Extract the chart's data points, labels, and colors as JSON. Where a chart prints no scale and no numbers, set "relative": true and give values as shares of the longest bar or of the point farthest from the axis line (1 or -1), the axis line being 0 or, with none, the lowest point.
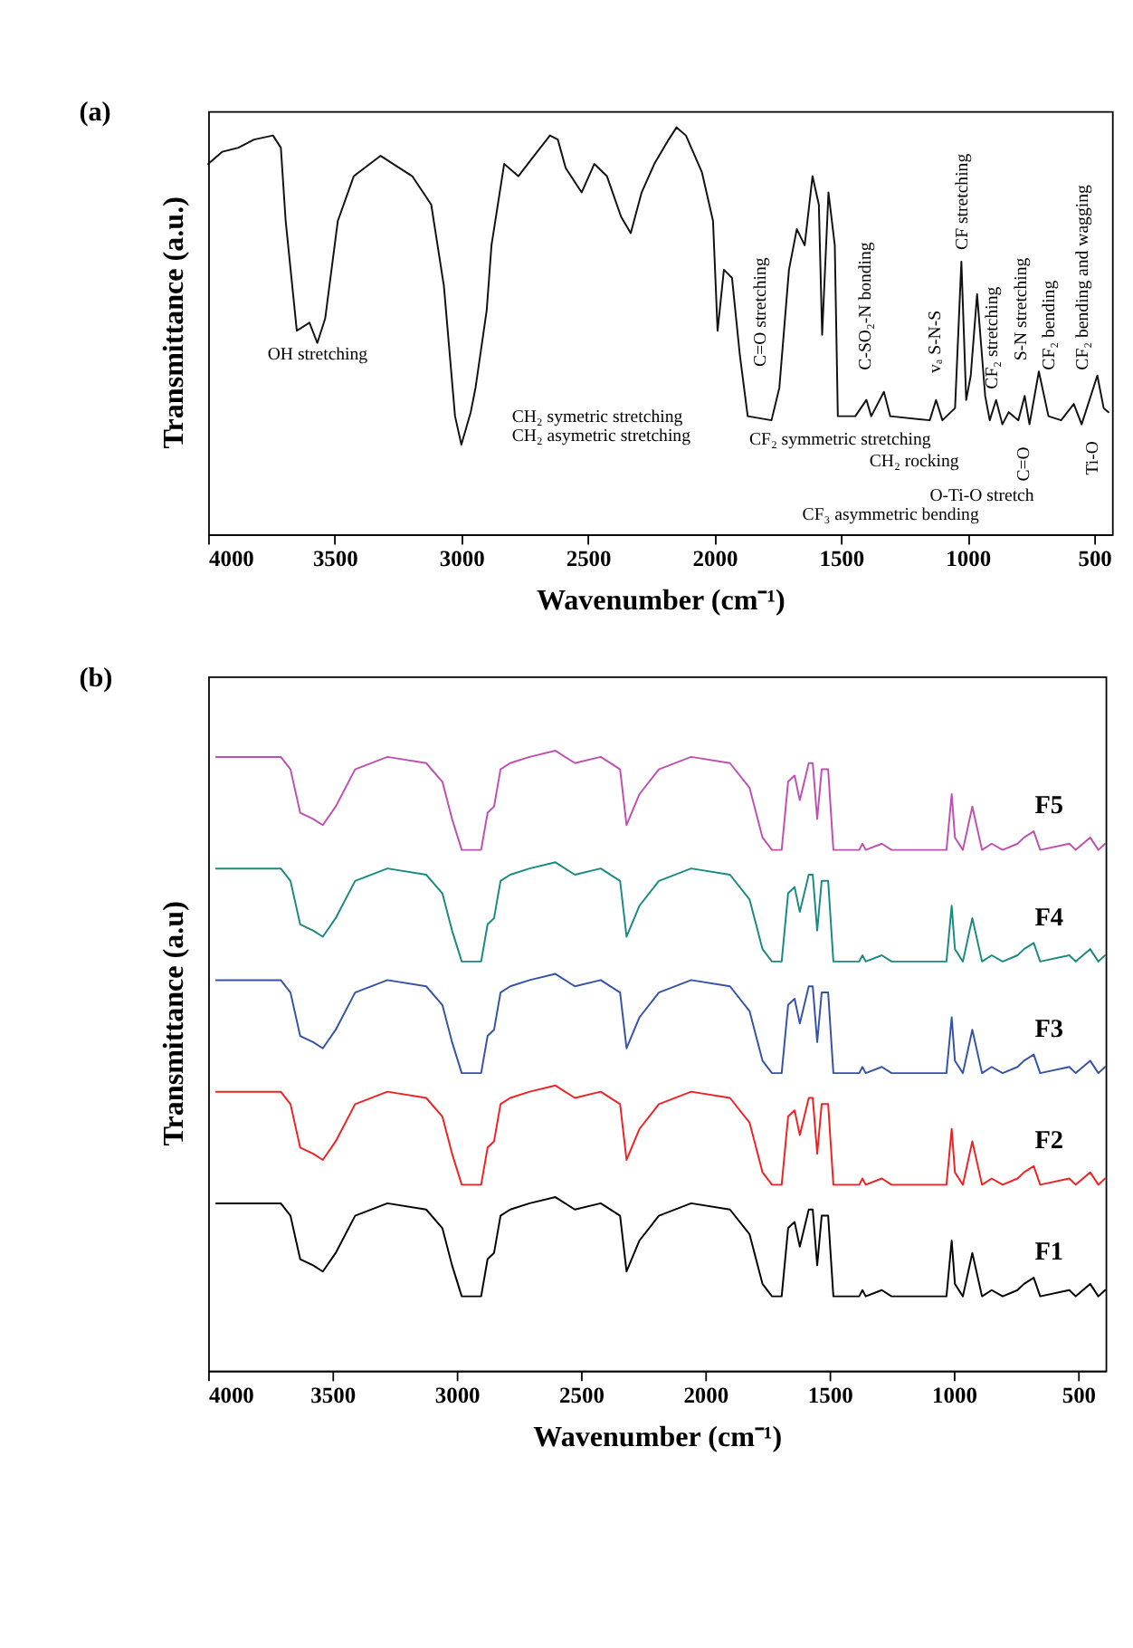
{
  "chart_data": [
    {
      "type": "line",
      "title": "(a)",
      "xlabel": "Wavenumber (cm⁻¹)",
      "ylabel": "Transmittance (a.u.)",
      "relative": true,
      "grid": false,
      "marker": "none",
      "line_style": "solid",
      "xlim": [
        4000,
        430
      ],
      "xticks": [
        4000,
        3500,
        3000,
        2500,
        2000,
        1500,
        1000,
        500
      ],
      "x": [
        4000,
        3944,
        3881,
        3819,
        3744,
        3713,
        3694,
        3650,
        3600,
        3569,
        3538,
        3488,
        3425,
        3319,
        3194,
        3119,
        3069,
        3025,
        3000,
        2963,
        2944,
        2900,
        2881,
        2831,
        2775,
        2713,
        2650,
        2619,
        2588,
        2525,
        2475,
        2425,
        2369,
        2331,
        2288,
        2238,
        2181,
        2150,
        2113,
        2050,
        2006,
        1988,
        1963,
        1931,
        1900,
        1869,
        1775,
        1744,
        1706,
        1675,
        1644,
        1613,
        1588,
        1575,
        1550,
        1525,
        1513,
        1444,
        1400,
        1381,
        1331,
        1306,
        1150,
        1125,
        1100,
        1050,
        1025,
        1006,
        988,
        963,
        931,
        913,
        888,
        863,
        838,
        800,
        775,
        756,
        719,
        681,
        631,
        581,
        550,
        488,
        463,
        444
      ],
      "series": [
        {
          "color": "#111111",
          "values": [
            0.91,
            0.94,
            0.95,
            0.97,
            0.98,
            0.95,
            0.77,
            0.5,
            0.52,
            0.47,
            0.53,
            0.77,
            0.88,
            0.93,
            0.88,
            0.81,
            0.61,
            0.29,
            0.22,
            0.3,
            0.36,
            0.55,
            0.71,
            0.91,
            0.88,
            0.93,
            0.98,
            0.97,
            0.9,
            0.84,
            0.91,
            0.88,
            0.78,
            0.74,
            0.84,
            0.91,
            0.97,
            1.0,
            0.98,
            0.89,
            0.77,
            0.5,
            0.65,
            0.63,
            0.44,
            0.29,
            0.28,
            0.36,
            0.65,
            0.75,
            0.71,
            0.88,
            0.81,
            0.49,
            0.84,
            0.71,
            0.29,
            0.29,
            0.33,
            0.29,
            0.35,
            0.29,
            0.28,
            0.33,
            0.28,
            0.31,
            0.67,
            0.33,
            0.39,
            0.59,
            0.34,
            0.28,
            0.33,
            0.27,
            0.3,
            0.28,
            0.34,
            0.27,
            0.4,
            0.29,
            0.28,
            0.32,
            0.27,
            0.39,
            0.31,
            0.3
          ]
        }
      ],
      "annotations": [
        "OH stretching",
        "CH₂ symetric stretching",
        "CH₂ asymetric stretching",
        "C=O stretching",
        "CF₂ symmetric stretching",
        "C-SO₂-N bonding",
        "vₐ S-N-S",
        "CF stretching",
        "CF₂ stretching",
        "CH₂ rocking",
        "S-N stretching",
        "C=O",
        "CF₂ bending",
        "O-Ti-O stretch",
        "CF₃ asymmetric bending",
        "CF₂ bending and wagging",
        "Ti-O"
      ]
    },
    {
      "type": "line",
      "title": "(b)",
      "xlabel": "Wavenumber (cm⁻¹)",
      "ylabel": "Transmittance (a.u)",
      "relative": true,
      "grid": false,
      "marker": "none",
      "line_style": "solid",
      "xlim": [
        4000,
        390
      ],
      "xticks": [
        4000,
        3500,
        3000,
        2500,
        2000,
        1500,
        1000,
        500
      ],
      "x": [
        3968,
        3825,
        3708,
        3669,
        3630,
        3578,
        3539,
        3487,
        3409,
        3279,
        3123,
        3058,
        3019,
        2980,
        2941,
        2902,
        2876,
        2850,
        2824,
        2785,
        2707,
        2603,
        2525,
        2421,
        2343,
        2317,
        2265,
        2187,
        2057,
        1901,
        1822,
        1770,
        1732,
        1693,
        1667,
        1641,
        1620,
        1584,
        1568,
        1550,
        1532,
        1506,
        1485,
        1381,
        1368,
        1355,
        1290,
        1251,
        1108,
        1089,
        1030,
        1009,
        996,
        964,
        926,
        887,
        848,
        804,
        744,
        718,
        679,
        653,
        536,
        510,
        452,
        419,
        392
      ],
      "series": [
        {
          "name": "F1",
          "color": "#000000",
          "values": [
            0.27,
            0.27,
            0.27,
            0.25,
            0.18,
            0.17,
            0.16,
            0.19,
            0.25,
            0.27,
            0.26,
            0.23,
            0.17,
            0.12,
            0.12,
            0.12,
            0.18,
            0.19,
            0.25,
            0.26,
            0.27,
            0.28,
            0.26,
            0.27,
            0.25,
            0.16,
            0.21,
            0.25,
            0.27,
            0.26,
            0.22,
            0.14,
            0.12,
            0.12,
            0.23,
            0.24,
            0.2,
            0.26,
            0.26,
            0.17,
            0.25,
            0.25,
            0.12,
            0.12,
            0.13,
            0.12,
            0.13,
            0.12,
            0.12,
            0.12,
            0.12,
            0.21,
            0.14,
            0.12,
            0.19,
            0.12,
            0.13,
            0.12,
            0.13,
            0.14,
            0.15,
            0.12,
            0.13,
            0.12,
            0.14,
            0.12,
            0.13
          ]
        },
        {
          "name": "F2",
          "color": "#ee2222",
          "values": [
            0.45,
            0.45,
            0.45,
            0.43,
            0.36,
            0.35,
            0.34,
            0.37,
            0.43,
            0.45,
            0.44,
            0.41,
            0.35,
            0.3,
            0.3,
            0.3,
            0.36,
            0.37,
            0.43,
            0.44,
            0.45,
            0.46,
            0.44,
            0.45,
            0.43,
            0.34,
            0.39,
            0.43,
            0.45,
            0.44,
            0.4,
            0.32,
            0.3,
            0.3,
            0.41,
            0.42,
            0.38,
            0.44,
            0.44,
            0.35,
            0.43,
            0.43,
            0.3,
            0.3,
            0.31,
            0.3,
            0.31,
            0.3,
            0.3,
            0.3,
            0.3,
            0.39,
            0.32,
            0.3,
            0.37,
            0.3,
            0.31,
            0.3,
            0.31,
            0.32,
            0.33,
            0.3,
            0.31,
            0.3,
            0.32,
            0.3,
            0.31
          ]
        },
        {
          "name": "F3",
          "color": "#3453a8",
          "values": [
            0.63,
            0.63,
            0.63,
            0.61,
            0.54,
            0.53,
            0.52,
            0.55,
            0.61,
            0.63,
            0.62,
            0.59,
            0.53,
            0.48,
            0.48,
            0.48,
            0.54,
            0.55,
            0.61,
            0.62,
            0.63,
            0.64,
            0.62,
            0.63,
            0.61,
            0.52,
            0.57,
            0.61,
            0.63,
            0.62,
            0.58,
            0.5,
            0.48,
            0.48,
            0.59,
            0.6,
            0.56,
            0.62,
            0.62,
            0.53,
            0.61,
            0.61,
            0.48,
            0.48,
            0.49,
            0.48,
            0.49,
            0.48,
            0.48,
            0.48,
            0.48,
            0.57,
            0.5,
            0.48,
            0.55,
            0.48,
            0.49,
            0.48,
            0.49,
            0.5,
            0.51,
            0.48,
            0.49,
            0.48,
            0.5,
            0.48,
            0.49
          ]
        },
        {
          "name": "F4",
          "color": "#1a8a80",
          "values": [
            0.81,
            0.81,
            0.81,
            0.79,
            0.72,
            0.71,
            0.7,
            0.73,
            0.79,
            0.81,
            0.8,
            0.77,
            0.71,
            0.66,
            0.66,
            0.66,
            0.72,
            0.73,
            0.79,
            0.8,
            0.81,
            0.82,
            0.8,
            0.81,
            0.79,
            0.7,
            0.75,
            0.79,
            0.81,
            0.8,
            0.76,
            0.68,
            0.66,
            0.66,
            0.77,
            0.78,
            0.74,
            0.8,
            0.8,
            0.71,
            0.79,
            0.79,
            0.66,
            0.66,
            0.67,
            0.66,
            0.67,
            0.66,
            0.66,
            0.66,
            0.66,
            0.75,
            0.68,
            0.66,
            0.73,
            0.66,
            0.67,
            0.66,
            0.67,
            0.68,
            0.69,
            0.66,
            0.67,
            0.66,
            0.68,
            0.66,
            0.67
          ]
        },
        {
          "name": "F5",
          "color": "#c050b0",
          "values": [
            0.99,
            0.99,
            0.99,
            0.97,
            0.9,
            0.89,
            0.88,
            0.91,
            0.97,
            0.99,
            0.98,
            0.95,
            0.89,
            0.84,
            0.84,
            0.84,
            0.9,
            0.91,
            0.97,
            0.98,
            0.99,
            1.0,
            0.98,
            0.99,
            0.97,
            0.88,
            0.93,
            0.97,
            0.99,
            0.98,
            0.94,
            0.86,
            0.84,
            0.84,
            0.95,
            0.96,
            0.92,
            0.98,
            0.98,
            0.89,
            0.97,
            0.97,
            0.84,
            0.84,
            0.85,
            0.84,
            0.85,
            0.84,
            0.84,
            0.84,
            0.84,
            0.93,
            0.86,
            0.84,
            0.91,
            0.84,
            0.85,
            0.84,
            0.85,
            0.86,
            0.87,
            0.84,
            0.85,
            0.84,
            0.86,
            0.84,
            0.85
          ]
        }
      ]
    }
  ]
}
